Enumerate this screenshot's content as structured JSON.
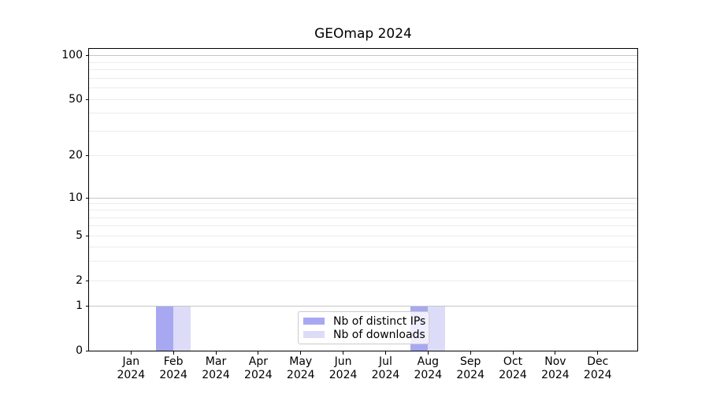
{
  "figure": {
    "title": "GEOmap 2024"
  },
  "y_axis": {
    "tick_labels": [
      "100",
      "50",
      "20",
      "10",
      "5",
      "2",
      "1",
      "0"
    ]
  },
  "x_axis": {
    "months": [
      "Jan",
      "Feb",
      "Mar",
      "Apr",
      "May",
      "Jun",
      "Jul",
      "Aug",
      "Sep",
      "Oct",
      "Nov",
      "Dec"
    ],
    "year": "2024"
  },
  "legend": {
    "entries": [
      {
        "label": "Nb of distinct IPs",
        "color": "#a8a8f2"
      },
      {
        "label": "Nb of downloads",
        "color": "#dcdcf9"
      }
    ]
  },
  "colors": {
    "distinct_ips": "#a8a8f2",
    "downloads": "#dcdcf9",
    "grid_minor": "#ececec",
    "grid_major": "#c6c6c6",
    "spine": "#000000"
  },
  "chart_data": {
    "type": "bar",
    "title": "GEOmap 2024",
    "categories": [
      "Jan 2024",
      "Feb 2024",
      "Mar 2024",
      "Apr 2024",
      "May 2024",
      "Jun 2024",
      "Jul 2024",
      "Aug 2024",
      "Sep 2024",
      "Oct 2024",
      "Nov 2024",
      "Dec 2024"
    ],
    "series": [
      {
        "name": "Nb of distinct IPs",
        "color": "#a8a8f2",
        "values": [
          0,
          1,
          0,
          0,
          0,
          0,
          0,
          1,
          0,
          0,
          0,
          0
        ]
      },
      {
        "name": "Nb of downloads",
        "color": "#dcdcf9",
        "values": [
          0,
          1,
          0,
          0,
          0,
          0,
          0,
          1,
          0,
          0,
          0,
          0
        ]
      }
    ],
    "y_ticks": [
      0,
      1,
      2,
      5,
      10,
      20,
      50,
      100
    ],
    "yscale": "log-with-zero",
    "ylim": [
      0,
      130
    ],
    "xlabel": "",
    "ylabel": "",
    "grid": true,
    "legend_position": "lower center"
  }
}
